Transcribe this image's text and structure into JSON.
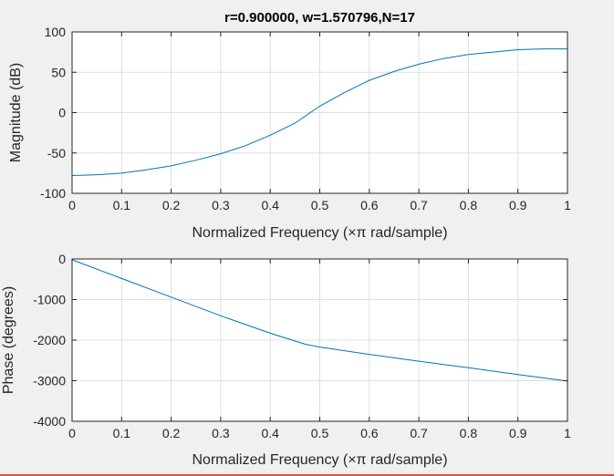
{
  "window": {
    "background": "#f0f0f0",
    "border_accent": "#d9534f"
  },
  "chart_data": [
    {
      "type": "line",
      "title": "r=0.900000, w=1.570796,N=17",
      "xlabel": "Normalized Frequency  (×π rad/sample)",
      "ylabel": "Magnitude (dB)",
      "xlim": [
        0,
        1
      ],
      "ylim": [
        -100,
        100
      ],
      "xticks": [
        0,
        0.1,
        0.2,
        0.3,
        0.4,
        0.5,
        0.6,
        0.7,
        0.8,
        0.9,
        1
      ],
      "xtick_labels": [
        "0",
        "0.1",
        "0.2",
        "0.3",
        "0.4",
        "0.5",
        "0.6",
        "0.7",
        "0.8",
        "0.9",
        "1"
      ],
      "yticks": [
        -100,
        -50,
        0,
        50,
        100
      ],
      "ytick_labels": [
        "-100",
        "-50",
        "0",
        "50",
        "100"
      ],
      "grid": true,
      "line_color": "#0072bd",
      "x": [
        0,
        0.05,
        0.1,
        0.15,
        0.2,
        0.25,
        0.3,
        0.35,
        0.4,
        0.45,
        0.5,
        0.55,
        0.6,
        0.65,
        0.7,
        0.75,
        0.8,
        0.85,
        0.9,
        0.95,
        1.0
      ],
      "y": [
        -78,
        -77,
        -75,
        -71,
        -66,
        -59,
        -51,
        -41,
        -28,
        -13,
        8,
        25,
        40,
        51,
        60,
        67,
        72,
        75,
        78,
        79,
        79
      ]
    },
    {
      "type": "line",
      "title": "",
      "xlabel": "Normalized Frequency  (×π rad/sample)",
      "ylabel": "Phase (degrees)",
      "xlim": [
        0,
        1
      ],
      "ylim": [
        -4000,
        0
      ],
      "xticks": [
        0,
        0.1,
        0.2,
        0.3,
        0.4,
        0.5,
        0.6,
        0.7,
        0.8,
        0.9,
        1
      ],
      "xtick_labels": [
        "0",
        "0.1",
        "0.2",
        "0.3",
        "0.4",
        "0.5",
        "0.6",
        "0.7",
        "0.8",
        "0.9",
        "1"
      ],
      "yticks": [
        -4000,
        -3000,
        -2000,
        -1000,
        0
      ],
      "ytick_labels": [
        "-4000",
        "-3000",
        "-2000",
        "-1000",
        "0"
      ],
      "grid": true,
      "line_color": "#0072bd",
      "x": [
        0,
        0.1,
        0.2,
        0.3,
        0.4,
        0.47,
        0.5,
        0.6,
        0.7,
        0.8,
        0.9,
        1.0
      ],
      "y": [
        -20,
        -480,
        -940,
        -1400,
        -1830,
        -2100,
        -2170,
        -2350,
        -2520,
        -2680,
        -2850,
        -3010
      ]
    }
  ]
}
